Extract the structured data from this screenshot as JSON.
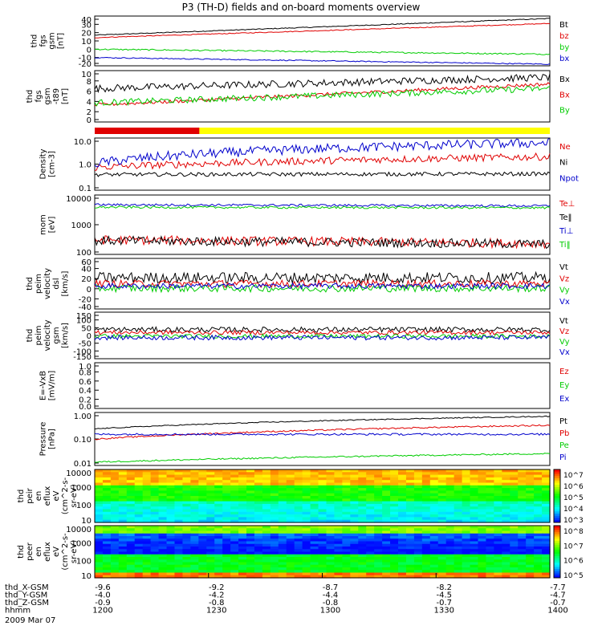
{
  "title": "P3 (TH-D) fields and on-board moments overview",
  "colors": {
    "black": "#000000",
    "red": "#e00000",
    "green": "#00cc00",
    "blue": "#0000cc",
    "yellow": "#ffff00"
  },
  "chart_data": [
    {
      "type": "line",
      "id": "p1",
      "ylabel": [
        "thd",
        "fgs",
        "gsm",
        "[nT]"
      ],
      "yticks": [
        "40",
        "30",
        "20",
        "10",
        "0",
        "-10",
        "-20"
      ],
      "ylim": [
        -20,
        40
      ],
      "series": [
        {
          "name": "Bt",
          "color": "black",
          "from": 17,
          "to": 37,
          "noise": 0.5
        },
        {
          "name": "bz",
          "color": "red",
          "from": 14,
          "to": 31,
          "noise": 0.5
        },
        {
          "name": "by",
          "color": "green",
          "from": 0,
          "to": -6,
          "noise": 0.8
        },
        {
          "name": "bx",
          "color": "blue",
          "from": -10,
          "to": -18,
          "noise": 0.6
        }
      ]
    },
    {
      "type": "line",
      "id": "p2",
      "ylabel": [
        "thd",
        "fgs",
        "gsm",
        "-t89",
        "[nT]"
      ],
      "yticks": [
        "10",
        "8",
        "6",
        "4",
        "2",
        "0"
      ],
      "ylim": [
        -0.5,
        11
      ],
      "series": [
        {
          "name": "Bx",
          "color": "black",
          "from": 7,
          "to": 9.5,
          "noise": 0.8
        },
        {
          "name": "Bx",
          "color": "red",
          "from": 3.3,
          "to": 8,
          "noise": 0.4
        },
        {
          "name": "By",
          "color": "green",
          "from": 3.8,
          "to": 7,
          "noise": 0.7
        }
      ]
    },
    {
      "type": "bar",
      "id": "p3",
      "segments": [
        {
          "color": "red",
          "from": 0,
          "to": 0.23
        },
        {
          "color": "yellow",
          "from": 0.23,
          "to": 1
        }
      ]
    },
    {
      "type": "line",
      "id": "p4",
      "scale": "log",
      "ylabel": [
        "Density",
        "[cm-3]"
      ],
      "yticks": [
        "10.0",
        "1.0",
        "0.1"
      ],
      "ylim": [
        0.1,
        15
      ],
      "series": [
        {
          "name": "Ne",
          "color": "red",
          "from": 0.9,
          "to": 2.5,
          "noise": 0.15
        },
        {
          "name": "Ni",
          "color": "black",
          "from": 0.45,
          "to": 0.48,
          "noise": 0.08
        },
        {
          "name": "Npot",
          "color": "blue",
          "from": 1.3,
          "to": 9.5,
          "noise": 0.2
        }
      ]
    },
    {
      "type": "line",
      "id": "p5",
      "scale": "log",
      "ylabel": [
        "mom",
        "[eV]"
      ],
      "yticks": [
        "10000",
        "1000",
        "100"
      ],
      "ylim": [
        30,
        12000
      ],
      "series": [
        {
          "name": "Te⊥",
          "color": "red",
          "from": 130,
          "to": 90,
          "noise": 0.2
        },
        {
          "name": "Te‖",
          "color": "black",
          "from": 120,
          "to": 85,
          "noise": 0.2
        },
        {
          "name": "Ti⊥",
          "color": "blue",
          "from": 4500,
          "to": 4000,
          "noise": 0.05
        },
        {
          "name": "Ti‖",
          "color": "green",
          "from": 3500,
          "to": 3300,
          "noise": 0.05
        }
      ]
    },
    {
      "type": "line",
      "id": "p6",
      "ylabel": [
        "thd",
        "peim",
        "velocity",
        "dsl",
        "[km/s]"
      ],
      "yticks": [
        "60",
        "40",
        "20",
        "0",
        "-20",
        "-40"
      ],
      "ylim": [
        -50,
        60
      ],
      "series": [
        {
          "name": "Vt",
          "color": "black",
          "from": 18,
          "to": 18,
          "noise": 12
        },
        {
          "name": "Vz",
          "color": "red",
          "from": 5,
          "to": 5,
          "noise": 8
        },
        {
          "name": "Vy",
          "color": "green",
          "from": -5,
          "to": -5,
          "noise": 8
        },
        {
          "name": "Vx",
          "color": "blue",
          "from": 0,
          "to": 0,
          "noise": 6
        }
      ]
    },
    {
      "type": "line",
      "id": "p7",
      "ylabel": [
        "thd",
        "peim",
        "velocity",
        "gsm",
        "[km/s]"
      ],
      "yticks": [
        "150",
        "100",
        "50",
        "0",
        "-50",
        "-100",
        "-150"
      ],
      "ylim": [
        -160,
        160
      ],
      "series": [
        {
          "name": "Vt",
          "color": "black",
          "from": 40,
          "to": 40,
          "noise": 18
        },
        {
          "name": "Vz",
          "color": "red",
          "from": 20,
          "to": 20,
          "noise": 14
        },
        {
          "name": "Vy",
          "color": "green",
          "from": -5,
          "to": -5,
          "noise": 14
        },
        {
          "name": "Vx",
          "color": "blue",
          "from": -15,
          "to": -15,
          "noise": 16
        }
      ]
    },
    {
      "type": "line",
      "id": "p8",
      "ylabel": [
        "E=-VxB",
        "[mV/m]"
      ],
      "yticks": [
        "1.0",
        "0.8",
        "0.6",
        "0.4",
        "0.2",
        "0.0"
      ],
      "ylim": [
        0,
        1
      ],
      "series": [
        {
          "name": "Ez",
          "color": "red"
        },
        {
          "name": "Ey",
          "color": "green"
        },
        {
          "name": "Ex",
          "color": "blue"
        }
      ]
    },
    {
      "type": "line",
      "id": "p9",
      "scale": "log",
      "ylabel": [
        "Pressure",
        "[nPa]"
      ],
      "yticks": [
        "1.00",
        "0.10",
        "0.01"
      ],
      "ylim": [
        0.008,
        1.3
      ],
      "series": [
        {
          "name": "Pt",
          "color": "black",
          "from": 0.27,
          "to": 0.9,
          "noise": 0.02
        },
        {
          "name": "Pb",
          "color": "red",
          "from": 0.1,
          "to": 0.38,
          "noise": 0.03
        },
        {
          "name": "Pe",
          "color": "green",
          "from": 0.011,
          "to": 0.025,
          "noise": 0.03
        },
        {
          "name": "Pi",
          "color": "blue",
          "from": 0.16,
          "to": 0.16,
          "noise": 0.04
        }
      ]
    },
    {
      "type": "heatmap",
      "id": "p10",
      "ylabel": [
        "thd",
        "peir",
        "en",
        "eflux",
        "eV",
        "(cm^2-s-",
        "sr-eV)"
      ],
      "yticks": [
        "10000",
        "1000",
        "100",
        "10"
      ],
      "cbticks": [
        "10^7",
        "10^6",
        "10^5",
        "10^4",
        "10^3"
      ]
    },
    {
      "type": "heatmap",
      "id": "p11",
      "ylabel": [
        "thd",
        "peer",
        "en",
        "eflux",
        "eV",
        "(cm^2-s-",
        "sr-eV)"
      ],
      "yticks": [
        "10000",
        "1000",
        "100",
        "10"
      ],
      "cbticks": [
        "10^8",
        "10^7",
        "10^6",
        "10^5"
      ]
    }
  ],
  "xaxis": {
    "rows": [
      {
        "label": "thd_X-GSM",
        "values": [
          "-9.6",
          "-9.2",
          "-8.7",
          "-8.2",
          "-7.7"
        ]
      },
      {
        "label": "thd_Y-GSM",
        "values": [
          "-4.0",
          "-4.2",
          "-4.4",
          "-4.5",
          "-4.7"
        ]
      },
      {
        "label": "thd_Z-GSM",
        "values": [
          "-0.9",
          "-0.8",
          "-0.8",
          "-0.7",
          "-0.7"
        ]
      },
      {
        "label": "hhmm",
        "values": [
          "1200",
          "1230",
          "1300",
          "1330",
          "1400"
        ]
      }
    ],
    "date": "2009 Mar 07"
  }
}
